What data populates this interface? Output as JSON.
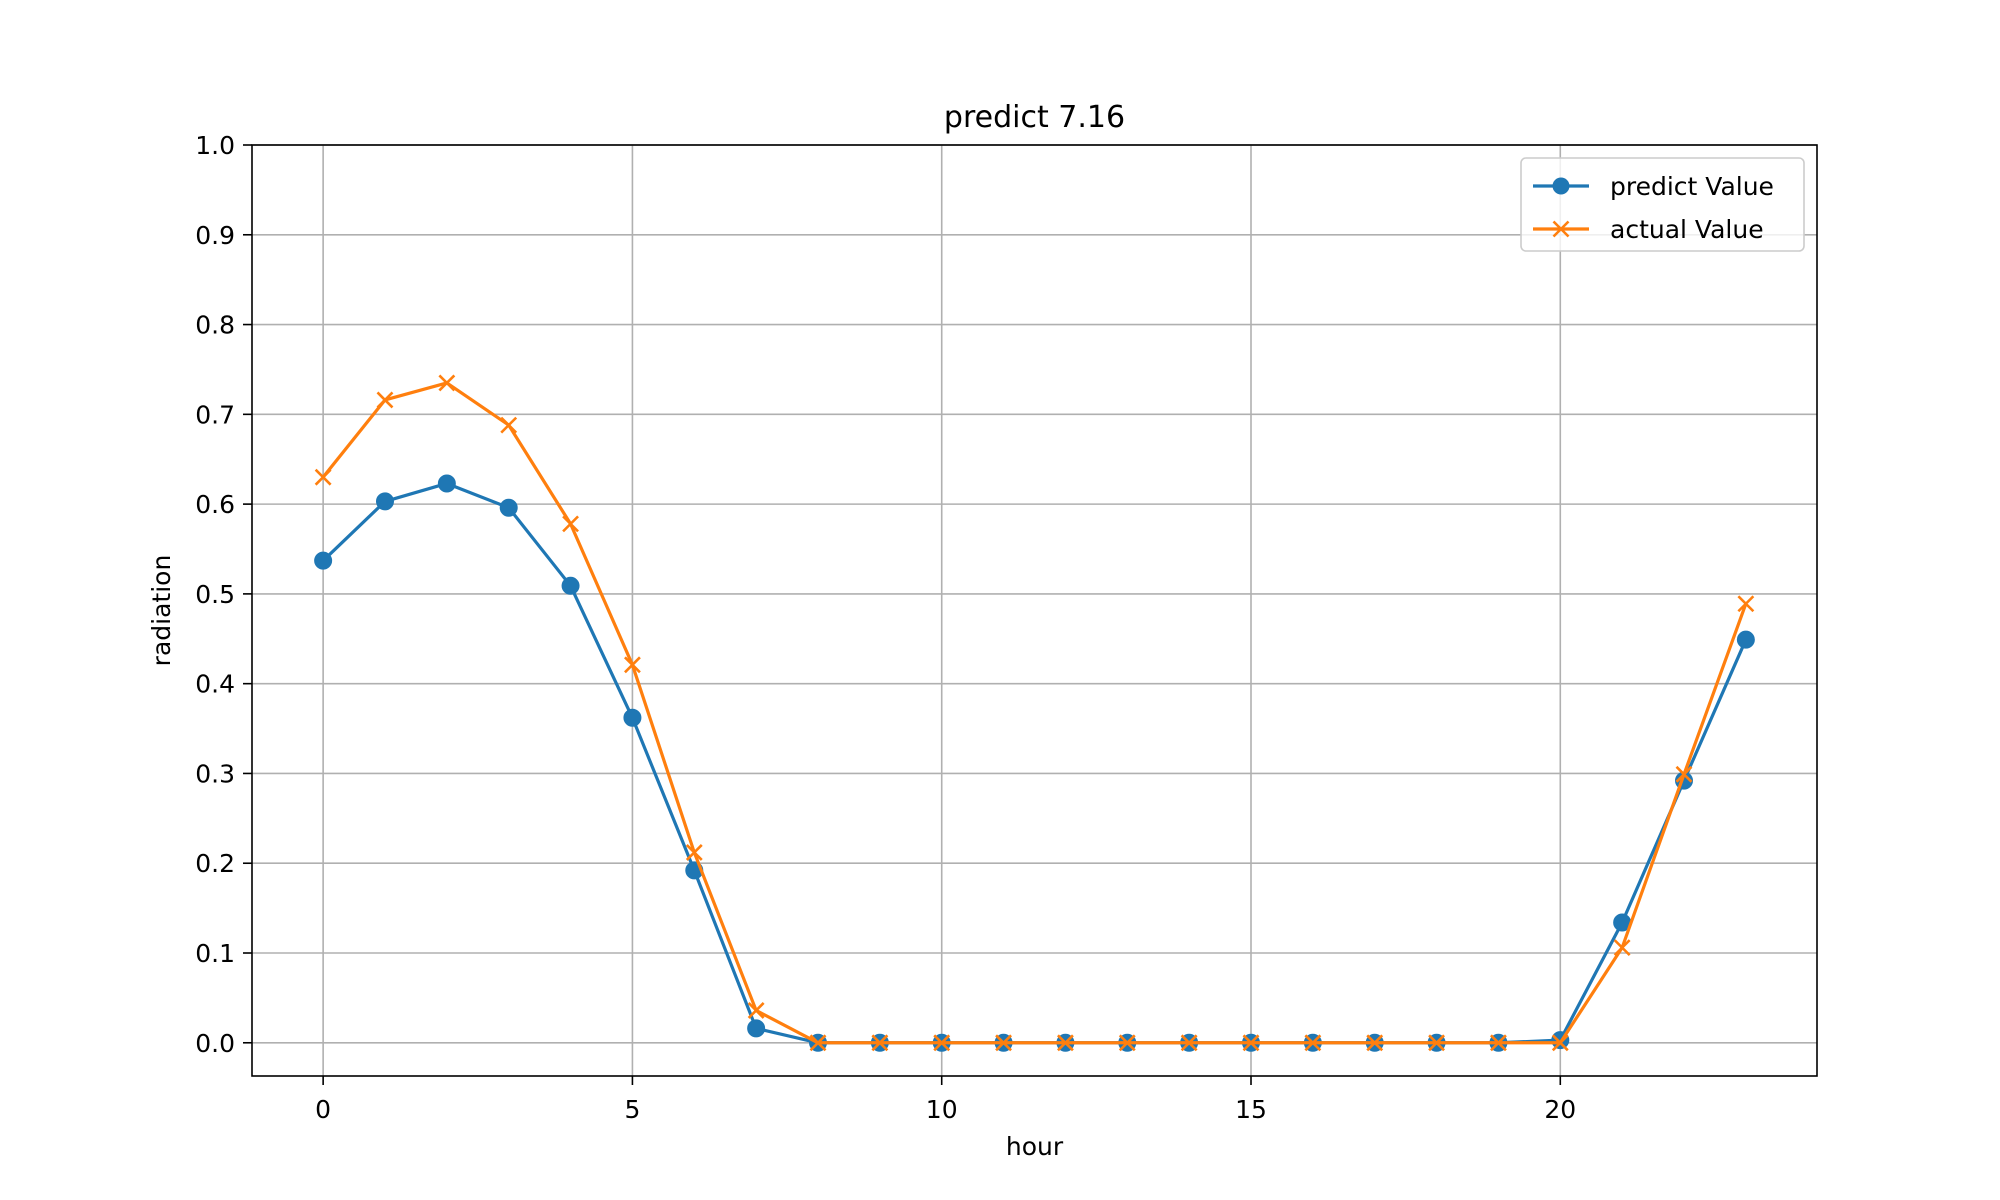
{
  "chart_data": {
    "type": "line",
    "title": "predict 7.16",
    "xlabel": "hour",
    "ylabel": "radiation",
    "xlim": [
      -1.15,
      24.15
    ],
    "ylim": [
      -0.037,
      1.0
    ],
    "xticks": [
      0,
      5,
      10,
      15,
      20
    ],
    "yticks": [
      0.0,
      0.1,
      0.2,
      0.3,
      0.4,
      0.5,
      0.6,
      0.7,
      0.8,
      0.9,
      1.0
    ],
    "xtick_labels": [
      "0",
      "5",
      "10",
      "15",
      "20"
    ],
    "ytick_labels": [
      "0.0",
      "0.1",
      "0.2",
      "0.3",
      "0.4",
      "0.5",
      "0.6",
      "0.7",
      "0.8",
      "0.9",
      "1.0"
    ],
    "grid": true,
    "legend_position": "top-right",
    "x": [
      0,
      1,
      2,
      3,
      4,
      5,
      6,
      7,
      8,
      9,
      10,
      11,
      12,
      13,
      14,
      15,
      16,
      17,
      18,
      19,
      20,
      21,
      22,
      23
    ],
    "series": [
      {
        "name": "predict Value",
        "color": "#1f77b4",
        "marker": "circle",
        "values": [
          0.537,
          0.603,
          0.623,
          0.596,
          0.509,
          0.362,
          0.192,
          0.016,
          0.0,
          0.0,
          0.0,
          0.0,
          0.0,
          0.0,
          0.0,
          0.0,
          0.0,
          0.0,
          0.0,
          0.0,
          0.003,
          0.134,
          0.292,
          0.449
        ]
      },
      {
        "name": "actual Value",
        "color": "#ff7f0e",
        "marker": "x",
        "values": [
          0.63,
          0.716,
          0.735,
          0.688,
          0.578,
          0.421,
          0.212,
          0.036,
          0.0,
          0.0,
          0.0,
          0.0,
          0.0,
          0.0,
          0.0,
          0.0,
          0.0,
          0.0,
          0.0,
          0.0,
          0.0,
          0.106,
          0.299,
          0.489
        ]
      }
    ]
  }
}
